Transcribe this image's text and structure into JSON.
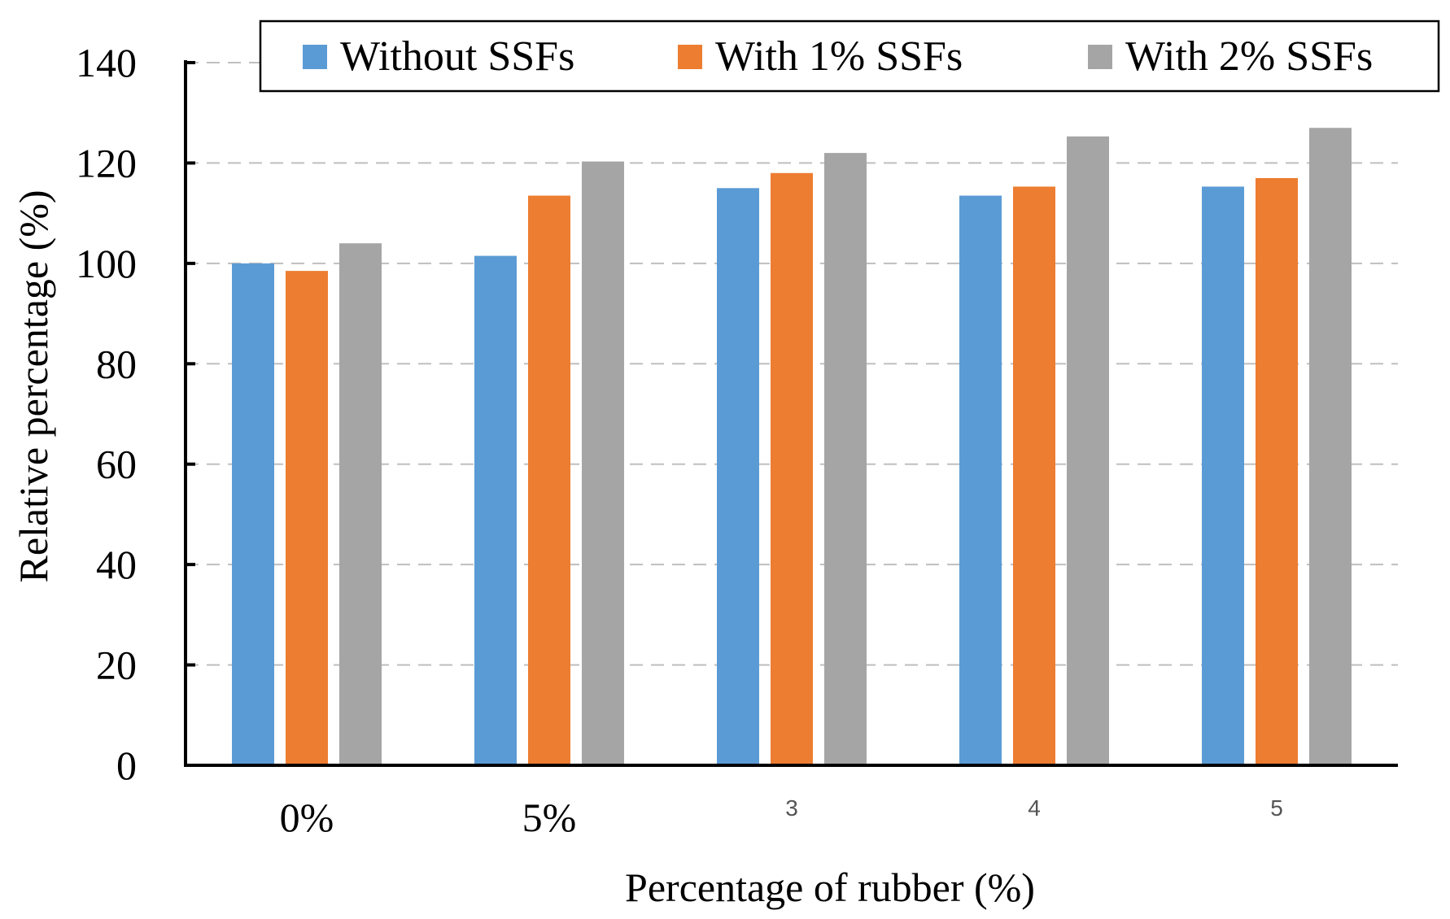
{
  "chart_data": {
    "type": "bar",
    "title": "",
    "xlabel": "Percentage  of rubber (%)",
    "ylabel": "Relative percentage  (%)",
    "categories": [
      "0%",
      "5%",
      "3",
      "4",
      "5"
    ],
    "series": [
      {
        "name": "Without SSFs",
        "color": "#5b9bd5",
        "values": [
          100,
          101.5,
          115,
          113.5,
          115.3
        ]
      },
      {
        "name": "With 1% SSFs",
        "color": "#ed7d31",
        "values": [
          98.5,
          113.5,
          118,
          115.3,
          117
        ]
      },
      {
        "name": "With 2% SSFs",
        "color": "#a5a5a5",
        "values": [
          104,
          120.3,
          122,
          125.3,
          127
        ]
      }
    ],
    "ylim": [
      0,
      140
    ],
    "yticks": [
      0,
      20,
      40,
      60,
      80,
      100,
      120,
      140
    ],
    "grid": true,
    "legend_position": "top"
  }
}
